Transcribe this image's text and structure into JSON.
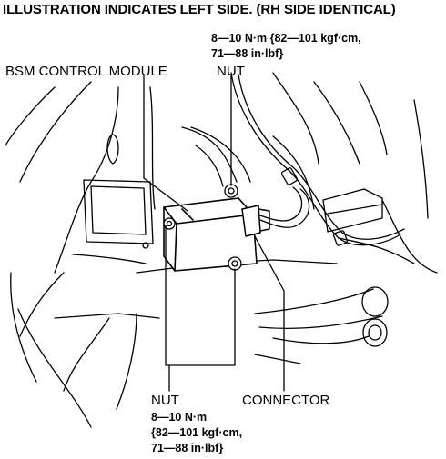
{
  "heading": "ILLUSTRATION INDICATES LEFT SIDE. (RH SIDE IDENTICAL)",
  "labels": {
    "module": "BSM CONTROL MODULE",
    "nut_top": "NUT",
    "nut_bottom": "NUT",
    "connector": "CONNECTOR"
  },
  "torque_top": {
    "line1": "8—10 N·m {82—101 kgf·cm,",
    "line2": "71—88 in·lbf}"
  },
  "torque_bottom": {
    "line1": "8—10 N·m",
    "line2": "{82—101 kgf·cm,",
    "line3": "71—88 in·lbf}"
  }
}
